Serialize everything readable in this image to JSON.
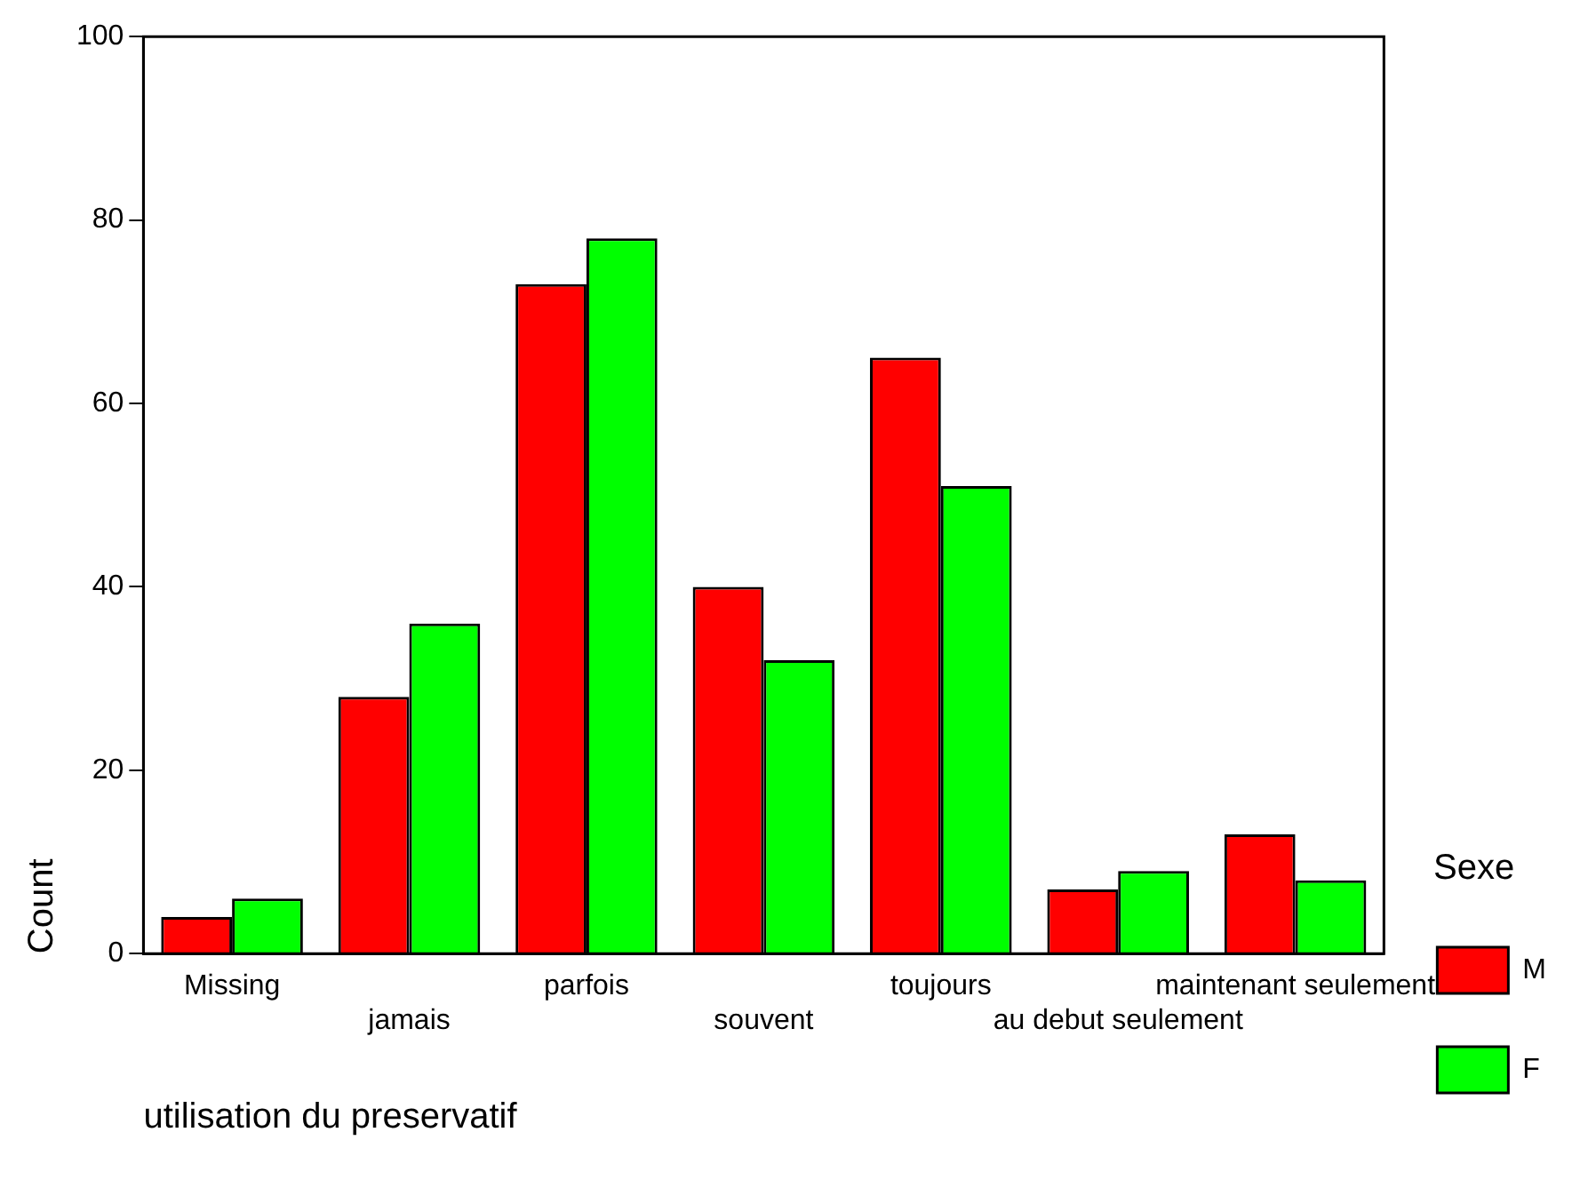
{
  "chart_data": {
    "type": "bar",
    "xlabel": "utilisation du preservatif",
    "ylabel": "Count",
    "legend_title": "Sexe",
    "legend": "right",
    "categories": [
      "Missing",
      "jamais",
      "parfois",
      "souvent",
      "toujours",
      "au debut seulement",
      "maintenant seulement"
    ],
    "series": [
      {
        "name": "M",
        "color": "#ff0000",
        "values": [
          4,
          28,
          73,
          40,
          65,
          7,
          13
        ]
      },
      {
        "name": "F",
        "color": "#00ff00",
        "values": [
          6,
          36,
          78,
          32,
          51,
          9,
          8
        ]
      }
    ],
    "ylim": [
      0,
      100
    ],
    "yticks": [
      0,
      20,
      40,
      60,
      80,
      100
    ],
    "grid": false
  }
}
